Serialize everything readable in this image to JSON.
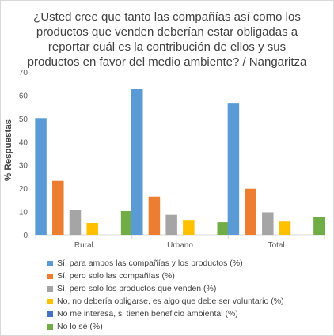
{
  "chart_data": {
    "type": "bar",
    "title": "¿Usted cree que tanto las compañías así como los productos que venden deberían estar obligadas a reportar cuál es la contribución de ellos y sus productos en favor del medio ambiente? / Nangaritza",
    "ylabel": "% Respuestas",
    "xlabel": "",
    "ylim": [
      0,
      70
    ],
    "yticks": [
      0,
      10,
      20,
      30,
      40,
      50,
      60,
      70
    ],
    "grid": false,
    "legend_position": "bottom",
    "categories": [
      "Rural",
      "Urbano",
      "Total"
    ],
    "series": [
      {
        "name": "Sí, para ambos las compañías y los productos (%)",
        "color": "#5B9BD5",
        "values": [
          50.2,
          62.8,
          56.7
        ]
      },
      {
        "name": "Sí, pero solo las compañías (%)",
        "color": "#ED7D31",
        "values": [
          23.2,
          16.4,
          19.8
        ]
      },
      {
        "name": "Sí, pero solo los productos que venden (%)",
        "color": "#A5A5A5",
        "values": [
          10.7,
          8.6,
          9.7
        ]
      },
      {
        "name": "No, no debería obligarse, es algo que debe ser voluntario (%)",
        "color": "#FFC000",
        "values": [
          5.1,
          6.4,
          5.7
        ]
      },
      {
        "name": "No me interesa, si tienen beneficio ambiental (%)",
        "color": "#4472C4",
        "values": [
          0,
          0,
          0
        ]
      },
      {
        "name": "No lo sé (%)",
        "color": "#70AD47",
        "values": [
          10.2,
          5.4,
          7.7
        ]
      }
    ]
  }
}
